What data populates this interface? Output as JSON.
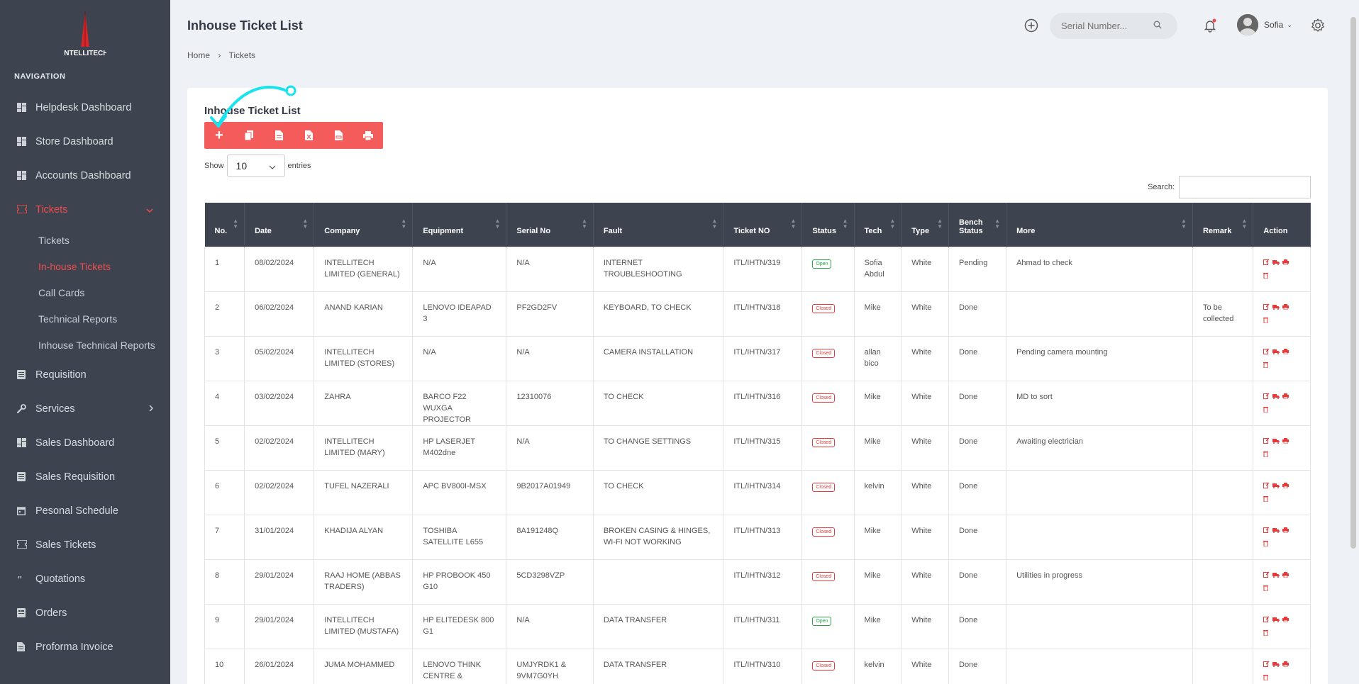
{
  "brand": {
    "logo_text": "INTELLITECH",
    "accent": "#ef4b4b",
    "sidebar_bg": "#3d4450"
  },
  "sidebar": {
    "heading": "NAVIGATION",
    "items": [
      {
        "label": "Helpdesk Dashboard",
        "icon": "dashboard-icon"
      },
      {
        "label": "Store Dashboard",
        "icon": "dashboard-icon"
      },
      {
        "label": "Accounts Dashboard",
        "icon": "dashboard-icon"
      },
      {
        "label": "Tickets",
        "icon": "ticket-icon",
        "active": true,
        "expanded": true,
        "children": [
          {
            "label": "Tickets"
          },
          {
            "label": "In-house Tickets",
            "active": true
          },
          {
            "label": "Call Cards"
          },
          {
            "label": "Technical Reports"
          },
          {
            "label": "Inhouse Technical Reports"
          }
        ]
      },
      {
        "label": "Requisition",
        "icon": "list-icon"
      },
      {
        "label": "Services",
        "icon": "wrench-icon",
        "has_children": true
      },
      {
        "label": "Sales Dashboard",
        "icon": "dashboard-icon"
      },
      {
        "label": "Sales Requisition",
        "icon": "list-icon"
      },
      {
        "label": "Pesonal Schedule",
        "icon": "calendar-icon"
      },
      {
        "label": "Sales Tickets",
        "icon": "ticket-icon"
      },
      {
        "label": "Quotations",
        "icon": "quote-icon"
      },
      {
        "label": "Orders",
        "icon": "order-icon"
      },
      {
        "label": "Proforma Invoice",
        "icon": "document-icon"
      }
    ]
  },
  "header": {
    "title": "Inhouse Ticket List",
    "search_placeholder": "Serial Number...",
    "user_name": "Sofia"
  },
  "breadcrumb": [
    "Home",
    "Tickets"
  ],
  "card": {
    "title": "Inhouse Ticket List",
    "show_label": "Show",
    "entries_value": "10",
    "entries_label": "entries",
    "search_label": "Search:"
  },
  "table": {
    "columns": [
      "No.",
      "Date",
      "Company",
      "Equipment",
      "Serial No",
      "Fault",
      "Ticket NO",
      "Status",
      "Tech",
      "Type",
      "Bench Status",
      "More",
      "Remark",
      "Action"
    ],
    "rows": [
      {
        "no": "1",
        "date": "08/02/2024",
        "company": "INTELLITECH LIMITED (GENERAL)",
        "equipment": "N/A",
        "serial": "N/A",
        "fault": "INTERNET TROUBLESHOOTING",
        "ticket": "ITL/IHTN/319",
        "status": "Open",
        "tech": "Sofia Abdul",
        "type": "White",
        "bench": "Pending",
        "more": "Ahmad to check",
        "remark": ""
      },
      {
        "no": "2",
        "date": "06/02/2024",
        "company": "ANAND KARIAN",
        "equipment": "LENOVO IDEAPAD 3",
        "serial": "PF2GD2FV",
        "fault": "KEYBOARD, TO CHECK",
        "ticket": "ITL/IHTN/318",
        "status": "Closed",
        "tech": "Mike",
        "type": "White",
        "bench": "Done",
        "more": "",
        "remark": "To be collected"
      },
      {
        "no": "3",
        "date": "05/02/2024",
        "company": "INTELLITECH LIMITED (STORES)",
        "equipment": "N/A",
        "serial": "N/A",
        "fault": "CAMERA INSTALLATION",
        "ticket": "ITL/IHTN/317",
        "status": "Closed",
        "tech": "allan bico",
        "type": "White",
        "bench": "Done",
        "more": "Pending camera mounting",
        "remark": ""
      },
      {
        "no": "4",
        "date": "03/02/2024",
        "company": "ZAHRA",
        "equipment": "BARCO F22 WUXGA PROJECTOR",
        "serial": "12310076",
        "fault": "TO CHECK",
        "ticket": "ITL/IHTN/316",
        "status": "Closed",
        "tech": "Mike",
        "type": "White",
        "bench": "Done",
        "more": "MD to sort",
        "remark": ""
      },
      {
        "no": "5",
        "date": "02/02/2024",
        "company": "INTELLITECH LIMITED (MARY)",
        "equipment": "HP LASERJET M402dne",
        "serial": "N/A",
        "fault": "TO CHANGE SETTINGS",
        "ticket": "ITL/IHTN/315",
        "status": "Closed",
        "tech": "Mike",
        "type": "White",
        "bench": "Done",
        "more": "Awaiting electrician",
        "remark": ""
      },
      {
        "no": "6",
        "date": "02/02/2024",
        "company": "TUFEL NAZERALI",
        "equipment": "APC BV800I-MSX",
        "serial": "9B2017A01949",
        "fault": "TO CHECK",
        "ticket": "ITL/IHTN/314",
        "status": "Closed",
        "tech": "kelvin",
        "type": "White",
        "bench": "Done",
        "more": "",
        "remark": ""
      },
      {
        "no": "7",
        "date": "31/01/2024",
        "company": "KHADIJA ALYAN",
        "equipment": "TOSHIBA SATELLITE L655",
        "serial": "8A191248Q",
        "fault": "BROKEN CASING & HINGES, WI-FI NOT WORKING",
        "ticket": "ITL/IHTN/313",
        "status": "Closed",
        "tech": "Mike",
        "type": "White",
        "bench": "Done",
        "more": "",
        "remark": ""
      },
      {
        "no": "8",
        "date": "29/01/2024",
        "company": "RAAJ HOME (ABBAS TRADERS)",
        "equipment": "HP PROBOOK 450 G10",
        "serial": "5CD3298VZP",
        "fault": "",
        "ticket": "ITL/IHTN/312",
        "status": "Closed",
        "tech": "Mike",
        "type": "White",
        "bench": "Done",
        "more": "Utilities in progress",
        "remark": ""
      },
      {
        "no": "9",
        "date": "29/01/2024",
        "company": "INTELLITECH LIMITED (MUSTAFA)",
        "equipment": "HP ELITEDESK 800 G1",
        "serial": "N/A",
        "fault": "DATA TRANSFER",
        "ticket": "ITL/IHTN/311",
        "status": "Open",
        "tech": "Mike",
        "type": "White",
        "bench": "Done",
        "more": "",
        "remark": ""
      },
      {
        "no": "10",
        "date": "26/01/2024",
        "company": "JUMA MOHAMMED",
        "equipment": "LENOVO THINK CENTRE & SEAGATE",
        "serial": "UMJYRDK1 & 9VM7G0YH",
        "fault": "DATA TRANSFER",
        "ticket": "ITL/IHTN/310",
        "status": "Closed",
        "tech": "kelvin",
        "type": "White",
        "bench": "Done",
        "more": "",
        "remark": ""
      }
    ]
  }
}
